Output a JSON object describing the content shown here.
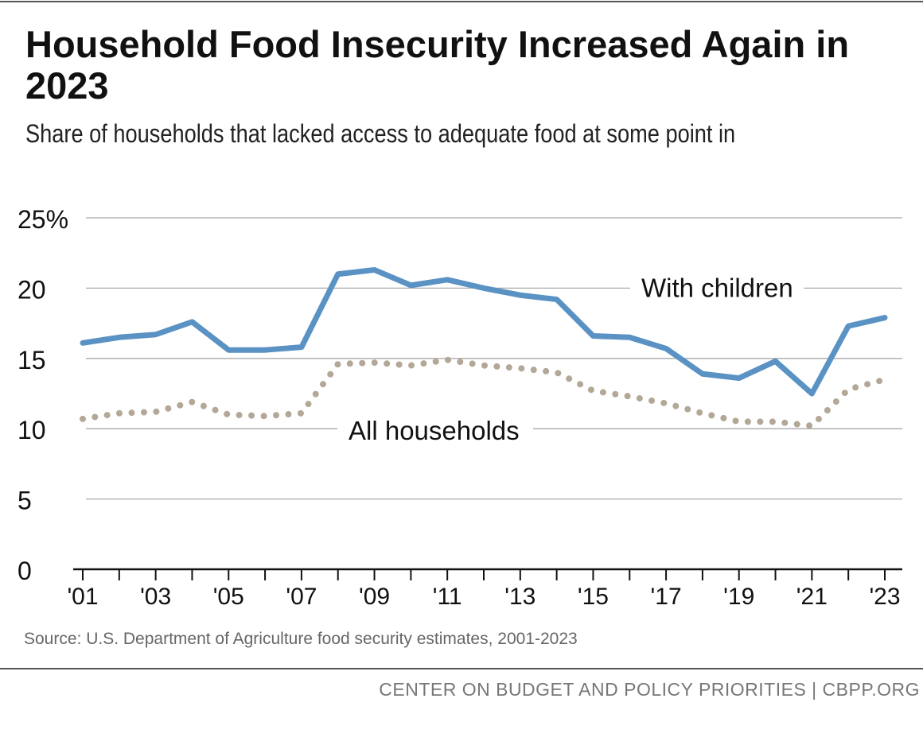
{
  "title": "Household Food Insecurity Increased Again in 2023",
  "subtitle": "Share of households that lacked access to adequate food at some point in",
  "source": "Source: U.S. Department of Agriculture food security estimates, 2001-2023",
  "footer": "CENTER ON BUDGET AND POLICY PRIORITIES | CBPP.ORG",
  "chart_data": {
    "type": "line",
    "x": [
      2001,
      2002,
      2003,
      2004,
      2005,
      2006,
      2007,
      2008,
      2009,
      2010,
      2011,
      2012,
      2013,
      2014,
      2015,
      2016,
      2017,
      2018,
      2019,
      2020,
      2021,
      2022,
      2023
    ],
    "xtick_labels": [
      "'01",
      "'03",
      "'05",
      "'07",
      "'09",
      "'11",
      "'13",
      "'15",
      "'17",
      "'19",
      "'21",
      "'23"
    ],
    "ytick_labels": [
      "0",
      "5",
      "10",
      "15",
      "20",
      "25%"
    ],
    "ylim": [
      0,
      25
    ],
    "grid": true,
    "series": [
      {
        "name": "With children",
        "color": "#5a92c4",
        "style": "solid",
        "values": [
          16.1,
          16.5,
          16.7,
          17.6,
          15.6,
          15.6,
          15.8,
          21.0,
          21.3,
          20.2,
          20.6,
          20.0,
          19.5,
          19.2,
          16.6,
          16.5,
          15.7,
          13.9,
          13.6,
          14.8,
          12.5,
          17.3,
          17.9
        ]
      },
      {
        "name": "All households",
        "color": "#b3a797",
        "style": "dotted",
        "values": [
          10.7,
          11.1,
          11.2,
          11.9,
          11.0,
          10.9,
          11.1,
          14.6,
          14.7,
          14.5,
          14.9,
          14.5,
          14.3,
          14.0,
          12.7,
          12.3,
          11.8,
          11.1,
          10.5,
          10.5,
          10.2,
          12.8,
          13.5
        ]
      }
    ]
  }
}
